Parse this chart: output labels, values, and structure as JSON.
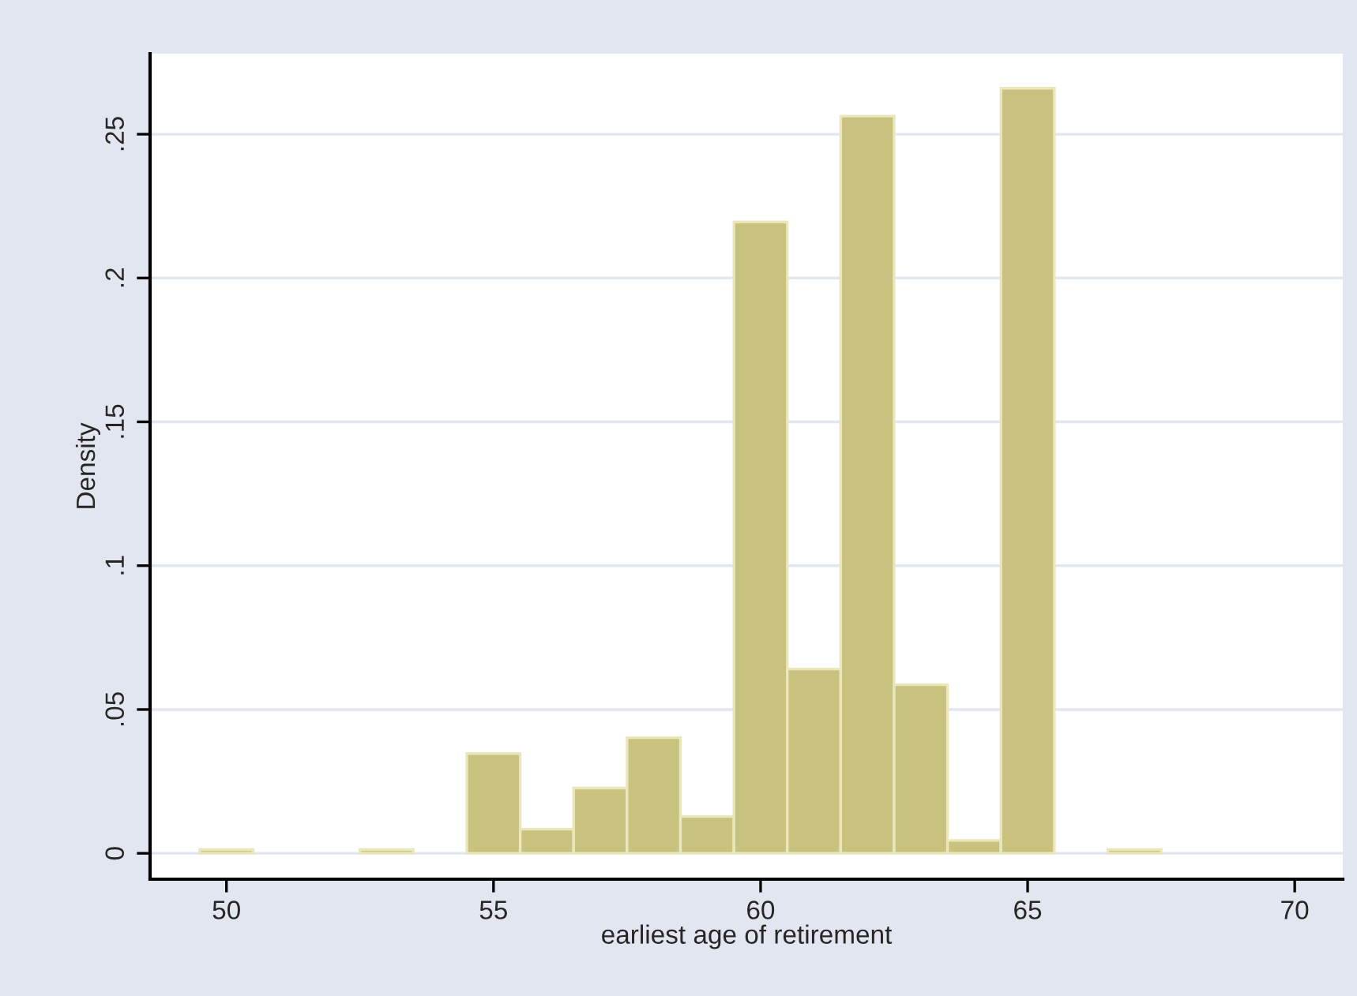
{
  "chart_data": {
    "type": "histogram",
    "xlabel": "earliest age of retirement",
    "ylabel": "Density",
    "bins": [
      49.5,
      50.5,
      51.5,
      52.5,
      53.5,
      54.5,
      55.5,
      56.5,
      57.5,
      58.5,
      59.5,
      60.5,
      61.5,
      62.5,
      63.5,
      64.5,
      65.5,
      66.5,
      67.5
    ],
    "values": [
      0.0013,
      0,
      0,
      0.0013,
      0,
      0.0347,
      0.0084,
      0.0227,
      0.0402,
      0.0128,
      0.2195,
      0.0641,
      0.2563,
      0.0586,
      0.0045,
      0.266,
      0,
      0.0013
    ],
    "color": "#c9c27f",
    "xlim": [
      48.57,
      70.9
    ],
    "xticks": [
      50,
      55,
      60,
      65,
      70
    ],
    "ylim": [
      -0.009,
      0.278
    ],
    "yticks": [
      {
        "value": 0,
        "label": "0"
      },
      {
        "value": 0.05,
        "label": ".05"
      },
      {
        "value": 0.1,
        "label": ".1"
      },
      {
        "value": 0.15,
        "label": ".15"
      },
      {
        "value": 0.2,
        "label": ".2"
      },
      {
        "value": 0.25,
        "label": ".25"
      }
    ],
    "grid": "y"
  }
}
